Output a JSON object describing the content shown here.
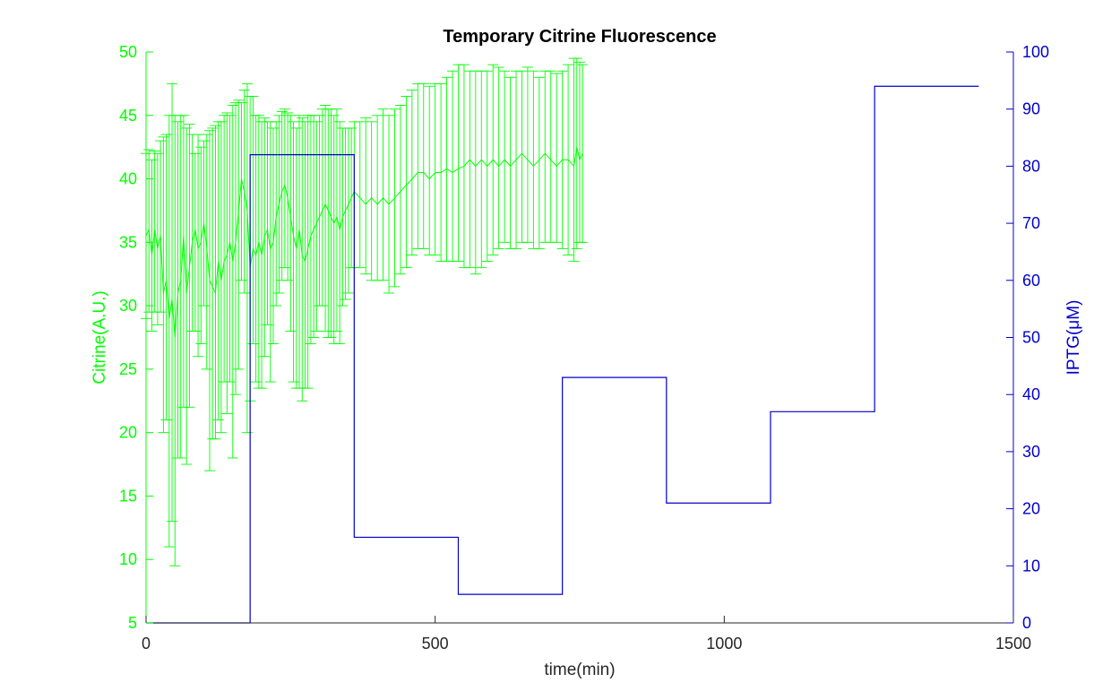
{
  "chart_data": {
    "type": "line",
    "title": "Temporary Citrine Fluorescence",
    "xlabel": "time(min)",
    "ylabel_left": "Citrine(A.U.)",
    "ylabel_right": "IPTG(μM)",
    "xlim": [
      0,
      1500
    ],
    "ylim_left": [
      5,
      50
    ],
    "ylim_right": [
      0,
      100
    ],
    "x_ticks": [
      0,
      500,
      1000,
      1500
    ],
    "y_left_ticks": [
      5,
      10,
      15,
      20,
      25,
      30,
      35,
      40,
      45,
      50
    ],
    "y_right_ticks": [
      0,
      10,
      20,
      30,
      40,
      50,
      60,
      70,
      80,
      90,
      100
    ],
    "grid": false,
    "colors": {
      "citrine": "#00ff00",
      "iptg": "#0000cc",
      "axes": "#262626"
    },
    "series": [
      {
        "name": "Citrine",
        "axis": "left",
        "error_bars": true,
        "points": [
          [
            0,
            35.5,
            29.0,
            42.0
          ],
          [
            5,
            36.0,
            29.5,
            42.3
          ],
          [
            10,
            34.0,
            28.0,
            41.5
          ],
          [
            15,
            36.0,
            29.5,
            42.2
          ],
          [
            20,
            34.5,
            28.5,
            42.0
          ],
          [
            25,
            35.5,
            29.5,
            43.0
          ],
          [
            30,
            31.0,
            20.0,
            43.3
          ],
          [
            35,
            32.0,
            21.0,
            43.5
          ],
          [
            40,
            29.0,
            11.0,
            45.0
          ],
          [
            45,
            30.5,
            13.0,
            47.5
          ],
          [
            50,
            27.5,
            9.5,
            45.0
          ],
          [
            55,
            31.0,
            18.0,
            44.5
          ],
          [
            60,
            32.0,
            18.0,
            45.0
          ],
          [
            65,
            35.5,
            22.0,
            45.0
          ],
          [
            70,
            31.0,
            17.5,
            44.0
          ],
          [
            75,
            33.0,
            22.0,
            44.3
          ],
          [
            80,
            35.0,
            28.0,
            43.5
          ],
          [
            85,
            36.0,
            28.0,
            42.0
          ],
          [
            90,
            34.5,
            26.0,
            43.5
          ],
          [
            95,
            35.0,
            27.0,
            42.5
          ],
          [
            100,
            36.5,
            30.0,
            43.0
          ],
          [
            105,
            34.5,
            25.0,
            43.5
          ],
          [
            110,
            32.0,
            17.0,
            43.8
          ],
          [
            115,
            31.5,
            19.5,
            44.0
          ],
          [
            120,
            31.0,
            19.5,
            44.2
          ],
          [
            125,
            33.5,
            21.0,
            44.5
          ],
          [
            130,
            32.0,
            20.0,
            44.5
          ],
          [
            135,
            33.5,
            24.0,
            45.0
          ],
          [
            140,
            34.0,
            21.5,
            45.2
          ],
          [
            145,
            35.0,
            24.0,
            45.0
          ],
          [
            150,
            33.5,
            18.0,
            45.8
          ],
          [
            155,
            35.0,
            23.0,
            46.0
          ],
          [
            160,
            37.5,
            25.0,
            46.2
          ],
          [
            165,
            40.0,
            32.0,
            46.0
          ],
          [
            170,
            39.0,
            31.0,
            47.0
          ],
          [
            175,
            37.5,
            20.0,
            47.5
          ],
          [
            180,
            33.0,
            22.5,
            46.5
          ],
          [
            185,
            34.5,
            27.0,
            46.5
          ],
          [
            190,
            34.0,
            24.0,
            45.0
          ],
          [
            195,
            35.0,
            23.5,
            45.0
          ],
          [
            200,
            34.0,
            23.5,
            44.5
          ],
          [
            205,
            35.5,
            26.0,
            44.8
          ],
          [
            210,
            36.0,
            28.5,
            44.5
          ],
          [
            215,
            34.5,
            24.0,
            44.5
          ],
          [
            220,
            35.0,
            27.0,
            44.0
          ],
          [
            225,
            37.0,
            30.0,
            44.5
          ],
          [
            230,
            38.0,
            31.0,
            45.0
          ],
          [
            235,
            39.0,
            32.0,
            45.3
          ],
          [
            240,
            39.5,
            33.0,
            45.5
          ],
          [
            245,
            38.5,
            32.0,
            45.2
          ],
          [
            250,
            37.0,
            28.0,
            45.0
          ],
          [
            255,
            35.5,
            24.0,
            44.5
          ],
          [
            260,
            34.5,
            23.5,
            44.0
          ],
          [
            265,
            36.0,
            23.5,
            45.0
          ],
          [
            270,
            34.0,
            22.5,
            44.8
          ],
          [
            275,
            33.5,
            23.5,
            44.5
          ],
          [
            280,
            34.5,
            23.5,
            45.0
          ],
          [
            285,
            35.5,
            27.0,
            45.0
          ],
          [
            290,
            36.0,
            27.5,
            45.0
          ],
          [
            295,
            36.5,
            28.0,
            44.5
          ],
          [
            300,
            37.0,
            30.0,
            45.0
          ],
          [
            305,
            37.5,
            30.0,
            45.5
          ],
          [
            310,
            38.0,
            28.0,
            45.8
          ],
          [
            315,
            37.5,
            27.5,
            45.5
          ],
          [
            320,
            37.0,
            27.5,
            45.5
          ],
          [
            325,
            36.5,
            27.0,
            45.0
          ],
          [
            330,
            37.0,
            28.0,
            45.5
          ],
          [
            335,
            36.0,
            27.0,
            44.5
          ],
          [
            340,
            37.0,
            30.0,
            44.0
          ],
          [
            345,
            37.5,
            30.5,
            44.0
          ],
          [
            350,
            38.0,
            31.0,
            44.0
          ],
          [
            355,
            38.5,
            33.0,
            44.0
          ],
          [
            360,
            39.0,
            33.0,
            44.5
          ],
          [
            370,
            38.5,
            33.0,
            44.5
          ],
          [
            380,
            38.0,
            32.5,
            44.8
          ],
          [
            390,
            38.5,
            32.0,
            44.5
          ],
          [
            400,
            38.0,
            32.0,
            45.0
          ],
          [
            410,
            38.5,
            32.0,
            45.5
          ],
          [
            420,
            38.0,
            31.0,
            45.0
          ],
          [
            430,
            38.5,
            31.5,
            45.5
          ],
          [
            440,
            39.0,
            32.5,
            45.8
          ],
          [
            450,
            39.5,
            33.0,
            46.5
          ],
          [
            460,
            40.0,
            34.0,
            47.0
          ],
          [
            470,
            40.5,
            34.5,
            47.5
          ],
          [
            480,
            40.5,
            34.5,
            47.5
          ],
          [
            490,
            40.0,
            34.0,
            47.3
          ],
          [
            500,
            40.5,
            34.0,
            47.5
          ],
          [
            510,
            40.5,
            33.5,
            47.5
          ],
          [
            520,
            40.8,
            33.5,
            48.0
          ],
          [
            530,
            40.5,
            33.5,
            48.5
          ],
          [
            540,
            40.8,
            33.5,
            49.0
          ],
          [
            550,
            41.0,
            33.0,
            49.0
          ],
          [
            560,
            41.5,
            33.0,
            48.5
          ],
          [
            570,
            41.0,
            32.5,
            48.5
          ],
          [
            580,
            41.5,
            33.0,
            48.5
          ],
          [
            590,
            41.0,
            33.5,
            48.5
          ],
          [
            600,
            41.5,
            34.0,
            49.0
          ],
          [
            610,
            41.0,
            34.5,
            48.8
          ],
          [
            620,
            41.5,
            35.0,
            48.5
          ],
          [
            630,
            41.0,
            34.5,
            48.0
          ],
          [
            640,
            41.5,
            34.5,
            48.5
          ],
          [
            650,
            42.0,
            35.0,
            48.5
          ],
          [
            660,
            41.5,
            35.0,
            48.8
          ],
          [
            670,
            41.0,
            34.5,
            48.5
          ],
          [
            680,
            41.5,
            34.5,
            48.0
          ],
          [
            690,
            42.0,
            35.0,
            48.5
          ],
          [
            700,
            41.5,
            35.0,
            48.5
          ],
          [
            710,
            41.0,
            35.0,
            48.3
          ],
          [
            720,
            41.5,
            34.5,
            48.5
          ],
          [
            730,
            41.5,
            34.0,
            49.0
          ],
          [
            740,
            41.0,
            33.5,
            49.5
          ],
          [
            745,
            42.5,
            34.5,
            49.5
          ],
          [
            750,
            41.5,
            35.0,
            49.2
          ],
          [
            755,
            42.0,
            35.0,
            49.0
          ]
        ]
      },
      {
        "name": "IPTG",
        "axis": "right",
        "style": "step",
        "steps": [
          [
            0,
            0
          ],
          [
            180,
            82
          ],
          [
            360,
            15
          ],
          [
            540,
            5
          ],
          [
            720,
            43
          ],
          [
            900,
            21
          ],
          [
            1080,
            37
          ],
          [
            1260,
            94
          ],
          [
            1440,
            94
          ]
        ]
      }
    ]
  }
}
